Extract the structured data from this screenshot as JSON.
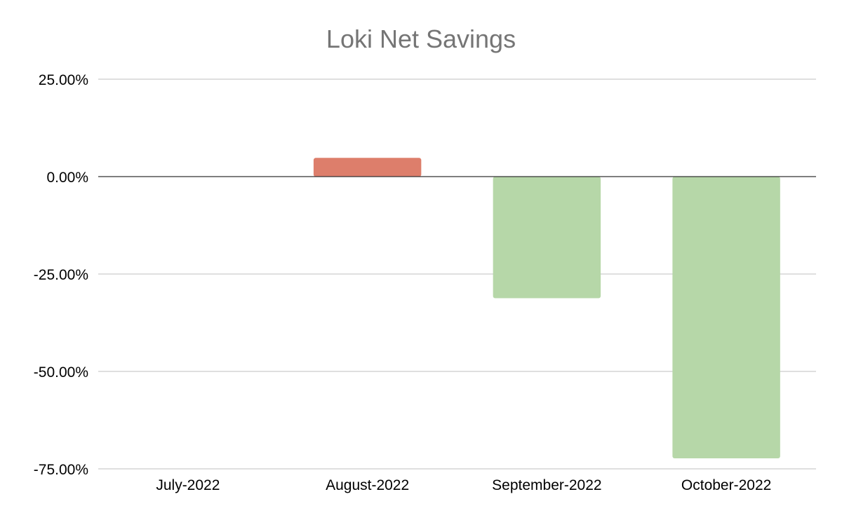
{
  "chart_data": {
    "type": "bar",
    "title": "Loki Net Savings",
    "xlabel": "",
    "ylabel": "",
    "categories": [
      "July-2022",
      "August-2022",
      "September-2022",
      "October-2022"
    ],
    "values": [
      0,
      4.8,
      -31.2,
      -72.3
    ],
    "value_unit": "%",
    "ylim": [
      -75,
      25
    ],
    "yticks": [
      25,
      0,
      -25,
      -50,
      -75
    ],
    "ytick_labels": [
      "25.00%",
      "0.00%",
      "-25.00%",
      "-50.00%",
      "-75.00%"
    ],
    "grid": true,
    "legend": "none",
    "colors": {
      "positive": "#dd7e6b",
      "negative": "#b6d7a8",
      "title": "#757575",
      "grid": "#cccccc",
      "zero_line": "#333333"
    }
  }
}
